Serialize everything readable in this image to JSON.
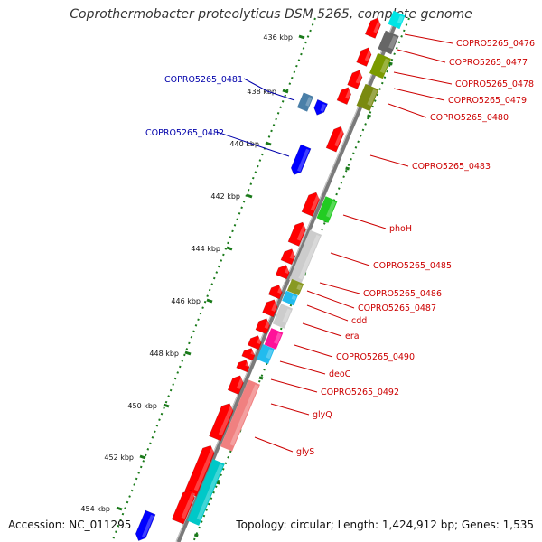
{
  "title": "Coprothermobacter proteolyticus DSM 5265, complete genome",
  "accession": "Accession: NC_011295",
  "topology": "Topology: circular",
  "length": "Length: 1,424,912 bp",
  "genes": "Genes: 1,535",
  "colors": {
    "plus_strand": "#ff0000",
    "minus_strand_blue": "#0000ff",
    "minus_label": "#0000aa",
    "plus_label": "#cc0000",
    "tick": "#1a7a1a",
    "backbone": "#7a7a7a"
  },
  "ticks": [
    "436 kbp",
    "438 kbp",
    "440 kbp",
    "442 kbp",
    "444 kbp",
    "446 kbp",
    "448 kbp",
    "450 kbp",
    "452 kbp",
    "454 kbp"
  ],
  "left_labels": [
    "COPRO5265_0481",
    "COPRO5265_0482"
  ],
  "right_labels": [
    "COPRO5265_0476",
    "COPRO5265_0477",
    "COPRO5265_0478",
    "COPRO5265_0479",
    "COPRO5265_0480",
    "COPRO5265_0483",
    "phoH",
    "COPRO5265_0485",
    "COPRO5265_0486",
    "COPRO5265_0487",
    "cdd",
    "era",
    "COPRO5265_0490",
    "deoC",
    "COPRO5265_0492",
    "glyQ",
    "glyS"
  ]
}
